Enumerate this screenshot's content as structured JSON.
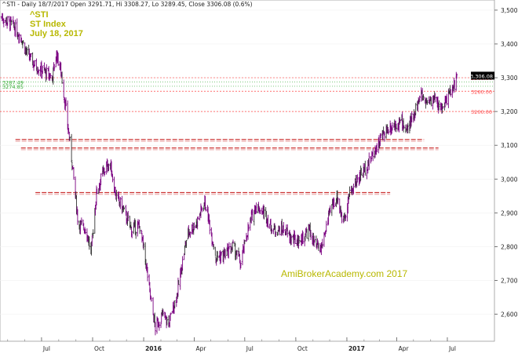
{
  "header": {
    "info": "^STI - Daily 18/7/2017 Open 3291.71, Hi 3308.27, Lo 3289.45, Close 3306.08 (0.6%)"
  },
  "title_block": {
    "symbol": "^STI",
    "name": "ST Index",
    "date": "July 18, 2017"
  },
  "watermark": "AmiBrokerAcademy.com 2017",
  "colors": {
    "bars": "#7a0080",
    "bars_dark": "#333333",
    "support": "#cc3333",
    "guide_red": "#ff4444",
    "guide_green": "#33aa33",
    "price_tag": "#000000",
    "text_yellow": "#b8b800"
  },
  "chart_data": {
    "type": "ohlc",
    "title": "^STI ST Index",
    "subtitle": "July 18, 2017",
    "ylim": [
      2520,
      3530
    ],
    "y_ticks": [
      "3,500",
      "3,400",
      "3,300",
      "3,200",
      "3,100",
      "3,000",
      "2,900",
      "2,800",
      "2,700",
      "2,600"
    ],
    "y_tick_values": [
      3500,
      3400,
      3300,
      3200,
      3100,
      3000,
      2900,
      2800,
      2700,
      2600
    ],
    "x_labels": [
      "Jul",
      "Oct",
      "2016",
      "Apr",
      "Jul",
      "Oct",
      "2017",
      "Apr",
      "Jul"
    ],
    "x_label_dates": [
      "2015-07",
      "2015-10",
      "2016-01",
      "2016-04",
      "2016-07",
      "2016-10",
      "2017-01",
      "2017-04",
      "2017-07"
    ],
    "x_range": [
      "2015-04-20",
      "2017-07-18"
    ],
    "last_close": 3306.08,
    "last_close_label": "3,306.08",
    "right_levels": [
      {
        "value": 3300,
        "label": "3300.00"
      },
      {
        "value": 3260,
        "label": "3260.00"
      },
      {
        "value": 3200,
        "label": "3200.00"
      }
    ],
    "left_levels": [
      {
        "value": 3287.49,
        "label": "3287.49"
      },
      {
        "value": 3274.85,
        "label": "3274.85"
      }
    ],
    "support_lines": [
      {
        "level": 3117,
        "from": "2015-05-15",
        "to": "2017-05-20"
      },
      {
        "level": 3092,
        "from": "2015-05-25",
        "to": "2017-06-15"
      },
      {
        "level": 2960,
        "from": "2015-06-20",
        "to": "2017-03-20"
      }
    ],
    "price_path": [
      [
        "2015-04-20",
        3480
      ],
      [
        "2015-05-10",
        3455
      ],
      [
        "2015-05-25",
        3420
      ],
      [
        "2015-06-05",
        3370
      ],
      [
        "2015-06-20",
        3335
      ],
      [
        "2015-07-05",
        3320
      ],
      [
        "2015-07-20",
        3300
      ],
      [
        "2015-07-28",
        3370
      ],
      [
        "2015-08-05",
        3320
      ],
      [
        "2015-08-15",
        3190
      ],
      [
        "2015-08-25",
        3050
      ],
      [
        "2015-09-05",
        2870
      ],
      [
        "2015-09-20",
        2850
      ],
      [
        "2015-09-28",
        2780
      ],
      [
        "2015-10-08",
        2960
      ],
      [
        "2015-10-20",
        3020
      ],
      [
        "2015-11-01",
        3050
      ],
      [
        "2015-11-12",
        2950
      ],
      [
        "2015-11-25",
        2910
      ],
      [
        "2015-12-10",
        2850
      ],
      [
        "2015-12-25",
        2860
      ],
      [
        "2016-01-05",
        2750
      ],
      [
        "2016-01-15",
        2630
      ],
      [
        "2016-01-22",
        2560
      ],
      [
        "2016-02-05",
        2600
      ],
      [
        "2016-02-15",
        2570
      ],
      [
        "2016-03-01",
        2660
      ],
      [
        "2016-03-20",
        2840
      ],
      [
        "2016-04-05",
        2870
      ],
      [
        "2016-04-20",
        2935
      ],
      [
        "2016-04-28",
        2870
      ],
      [
        "2016-05-10",
        2770
      ],
      [
        "2016-05-25",
        2775
      ],
      [
        "2016-06-10",
        2800
      ],
      [
        "2016-06-24",
        2750
      ],
      [
        "2016-07-05",
        2840
      ],
      [
        "2016-07-20",
        2920
      ],
      [
        "2016-08-05",
        2900
      ],
      [
        "2016-08-20",
        2850
      ],
      [
        "2016-09-10",
        2850
      ],
      [
        "2016-09-25",
        2820
      ],
      [
        "2016-10-10",
        2820
      ],
      [
        "2016-10-25",
        2850
      ],
      [
        "2016-11-05",
        2800
      ],
      [
        "2016-11-15",
        2790
      ],
      [
        "2016-11-25",
        2860
      ],
      [
        "2016-12-05",
        2920
      ],
      [
        "2016-12-15",
        2950
      ],
      [
        "2016-12-25",
        2870
      ],
      [
        "2017-01-05",
        2950
      ],
      [
        "2017-01-20",
        3000
      ],
      [
        "2017-02-10",
        3050
      ],
      [
        "2017-02-25",
        3100
      ],
      [
        "2017-03-10",
        3140
      ],
      [
        "2017-03-25",
        3160
      ],
      [
        "2017-04-10",
        3170
      ],
      [
        "2017-04-20",
        3140
      ],
      [
        "2017-05-05",
        3210
      ],
      [
        "2017-05-15",
        3250
      ],
      [
        "2017-05-25",
        3230
      ],
      [
        "2017-06-05",
        3240
      ],
      [
        "2017-06-20",
        3210
      ],
      [
        "2017-07-05",
        3250
      ],
      [
        "2017-07-12",
        3270
      ],
      [
        "2017-07-18",
        3306
      ]
    ]
  }
}
